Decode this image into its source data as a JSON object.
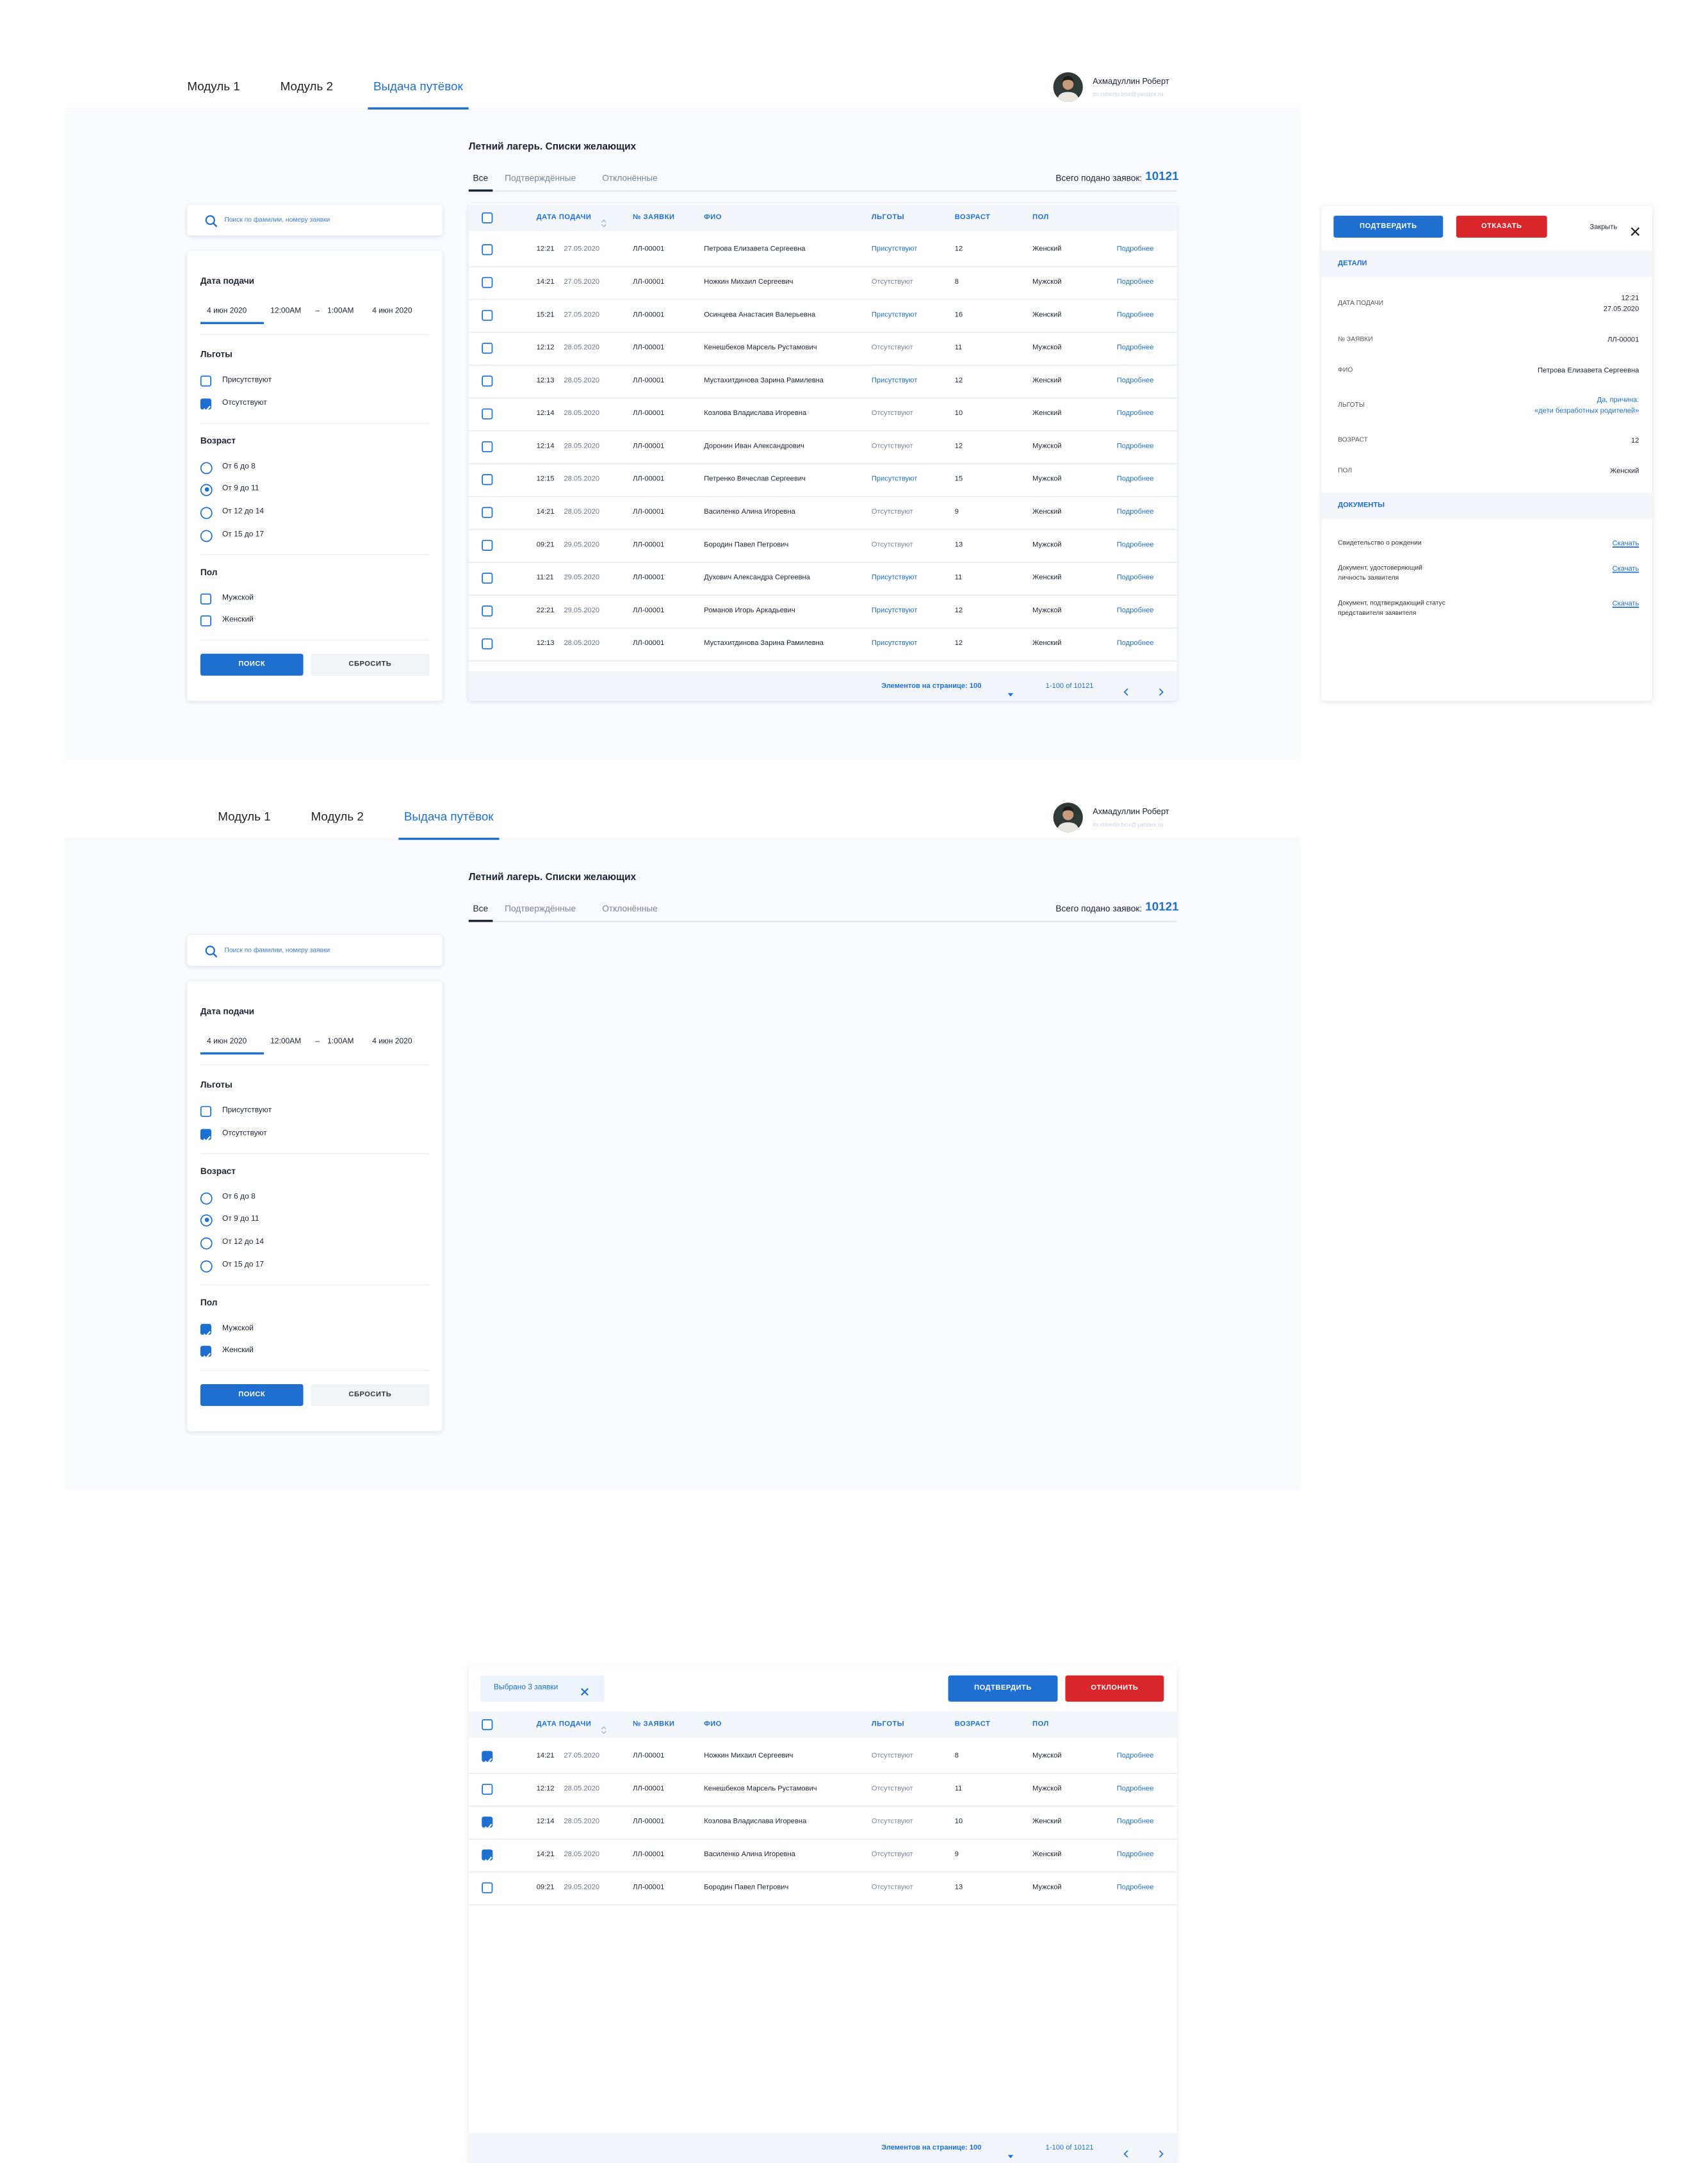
{
  "screens": [
    {
      "nav": {
        "tabs": [
          "Модуль 1",
          "Модуль 2",
          "Выдача путёвок"
        ],
        "active": 2
      },
      "user": {
        "name": "Ахмадуллин Роберт",
        "email": "its.roberto.box@yandex.ru"
      },
      "title": "Летний лагерь. Списки желающих",
      "tabs": [
        "Все",
        "Подтверждённые",
        "Отклонённые"
      ],
      "active_tab": 0,
      "total": {
        "label": "Всего подано заявок:",
        "value": 10121
      },
      "search_placeholder": "Поиск по фамилии, номеру заявки",
      "filters": {
        "date": {
          "title": "Дата подачи",
          "from_date": "4 июн 2020",
          "from_time": "12:00AM",
          "separator": "–",
          "to_time": "1:00AM",
          "to_date": "4 июн 2020"
        },
        "groups": [
          {
            "title": "Льготы",
            "kind": "checkbox",
            "options": [
              {
                "label": "Присутствуют",
                "checked": false
              },
              {
                "label": "Отсутствуют",
                "checked": true
              }
            ]
          },
          {
            "title": "Возраст",
            "kind": "radio",
            "options": [
              {
                "label": "От 6 до 8",
                "checked": false
              },
              {
                "label": "От 9 до 11",
                "checked": true
              },
              {
                "label": "От 12 до 14",
                "checked": false
              },
              {
                "label": "От 15 до 17",
                "checked": false
              }
            ]
          },
          {
            "title": "Пол",
            "kind": "checkbox",
            "options": [
              {
                "label": "Мужской",
                "checked": false
              },
              {
                "label": "Женский",
                "checked": false
              }
            ]
          }
        ],
        "buttons": {
          "search": "ПОИСК",
          "reset": "СБРОСИТЬ"
        }
      },
      "table": {
        "columns": [
          "ДАТА ПОДАЧИ",
          "№ ЗАЯВКИ",
          "ФИО",
          "ЛЬГОТЫ",
          "ВОЗРАСТ",
          "ПОЛ"
        ],
        "rows": [
          {
            "checked": false,
            "cells": [
              "12:21",
              "27.05.2020",
              "ЛЛ-00001",
              "Петрова Елизавета Сергеевна",
              "Присутствуют",
              12,
              "Женский",
              "Подробнее"
            ]
          },
          {
            "checked": false,
            "cells": [
              "14:21",
              "27.05.2020",
              "ЛЛ-00001",
              "Ножкин Михаил Сергеевич",
              "Отсутствуют",
              8,
              "Мужской",
              "Подробнее"
            ]
          },
          {
            "checked": false,
            "cells": [
              "15:21",
              "27.05.2020",
              "ЛЛ-00001",
              "Осинцева Анастасия Валерьевна",
              "Присутствуют",
              16,
              "Женский",
              "Подробнее"
            ]
          },
          {
            "checked": false,
            "cells": [
              "12:12",
              "28.05.2020",
              "ЛЛ-00001",
              "Кенешбеков Марсель Рустамович",
              "Отсутствуют",
              11,
              "Мужской",
              "Подробнее"
            ]
          },
          {
            "checked": false,
            "cells": [
              "12:13",
              "28.05.2020",
              "ЛЛ-00001",
              "Мустахитдинова Зарина Рамилевна",
              "Присутствуют",
              12,
              "Женский",
              "Подробнее"
            ]
          },
          {
            "checked": false,
            "cells": [
              "12:14",
              "28.05.2020",
              "ЛЛ-00001",
              "Козлова Владислава Игоревна",
              "Отсутствуют",
              10,
              "Женский",
              "Подробнее"
            ]
          },
          {
            "checked": false,
            "cells": [
              "12:14",
              "28.05.2020",
              "ЛЛ-00001",
              "Доронин Иван Александрович",
              "Отсутствуют",
              12,
              "Мужской",
              "Подробнее"
            ]
          },
          {
            "checked": false,
            "cells": [
              "12:15",
              "28.05.2020",
              "ЛЛ-00001",
              "Петренко Вячеслав Сергеевич",
              "Присутствуют",
              15,
              "Мужской",
              "Подробнее"
            ]
          },
          {
            "checked": false,
            "cells": [
              "14:21",
              "28.05.2020",
              "ЛЛ-00001",
              "Василенко Алина Игоревна",
              "Отсутствуют",
              9,
              "Женский",
              "Подробнее"
            ]
          },
          {
            "checked": false,
            "cells": [
              "09:21",
              "29.05.2020",
              "ЛЛ-00001",
              "Бородин Павел Петрович",
              "Отсутствуют",
              13,
              "Мужской",
              "Подробнее"
            ]
          },
          {
            "checked": false,
            "cells": [
              "11:21",
              "29.05.2020",
              "ЛЛ-00001",
              "Духович Александра Сергеевна",
              "Присутствуют",
              11,
              "Женский",
              "Подробнее"
            ]
          },
          {
            "checked": false,
            "cells": [
              "22:21",
              "29.05.2020",
              "ЛЛ-00001",
              "Романов Игорь Аркадьевич",
              "Присутствуют",
              12,
              "Мужской",
              "Подробнее"
            ]
          },
          {
            "checked": false,
            "cells": [
              "12:13",
              "28.05.2020",
              "ЛЛ-00001",
              "Мустахитдинова Зарина Рамилевна",
              "Присутствуют",
              12,
              "Женский",
              "Подробнее"
            ]
          }
        ],
        "footer": {
          "page_size": "Элементов на странице: 100",
          "range": "1-100 of 10121"
        }
      }
    },
    {
      "nav": {
        "tabs": [
          "Модуль 1",
          "Модуль 2",
          "Выдача путёвок"
        ],
        "active": 2
      },
      "user": {
        "name": "Ахмадуллин Роберт",
        "email": "its.roberto.box@yandex.ru"
      },
      "title": "Летний лагерь. Списки желающих",
      "tabs": [
        "Все",
        "Подтверждённые",
        "Отклонённые"
      ],
      "active_tab": 0,
      "total": {
        "label": "Всего подано заявок:",
        "value": 10121
      },
      "search_placeholder": "Поиск по фамилии, номеру заявки",
      "filters": {
        "date": {
          "title": "Дата подачи",
          "from_date": "4 июн 2020",
          "from_time": "12:00AM",
          "separator": "–",
          "to_time": "1:00AM",
          "to_date": "4 июн 2020"
        },
        "groups": [
          {
            "title": "Льготы",
            "kind": "checkbox",
            "options": [
              {
                "label": "Присутствуют",
                "checked": false
              },
              {
                "label": "Отсутствуют",
                "checked": true
              }
            ]
          },
          {
            "title": "Возраст",
            "kind": "radio",
            "options": [
              {
                "label": "От 6 до 8",
                "checked": false
              },
              {
                "label": "От 9 до 11",
                "checked": true
              },
              {
                "label": "От 12 до 14",
                "checked": false
              },
              {
                "label": "От 15 до 17",
                "checked": false
              }
            ]
          },
          {
            "title": "Пол",
            "kind": "checkbox",
            "options": [
              {
                "label": "Мужской",
                "checked": true
              },
              {
                "label": "Женский",
                "checked": true
              }
            ]
          }
        ],
        "buttons": {
          "search": "ПОИСК",
          "reset": "СБРОСИТЬ"
        }
      },
      "table": {
        "selection": "Выбрано 3 заявки",
        "actions": [
          "ПОДТВЕРДИТЬ",
          "ОТКЛОНИТЬ"
        ],
        "columns": [
          "ДАТА ПОДАЧИ",
          "№ ЗАЯВКИ",
          "ФИО",
          "ЛЬГОТЫ",
          "ВОЗРАСТ",
          "ПОЛ"
        ],
        "rows": [
          {
            "checked": true,
            "cells": [
              "14:21",
              "27.05.2020",
              "ЛЛ-00001",
              "Ножкин Михаил Сергеевич",
              "Отсутствуют",
              8,
              "Мужской",
              "Подробнее"
            ]
          },
          {
            "checked": false,
            "cells": [
              "12:12",
              "28.05.2020",
              "ЛЛ-00001",
              "Кенешбеков Марсель Рустамович",
              "Отсутствуют",
              11,
              "Мужской",
              "Подробнее"
            ]
          },
          {
            "checked": true,
            "cells": [
              "12:14",
              "28.05.2020",
              "ЛЛ-00001",
              "Козлова Владислава Игоревна",
              "Отсутствуют",
              10,
              "Женский",
              "Подробнее"
            ]
          },
          {
            "checked": true,
            "cells": [
              "14:21",
              "28.05.2020",
              "ЛЛ-00001",
              "Василенко Алина Игоревна",
              "Отсутствуют",
              9,
              "Женский",
              "Подробнее"
            ]
          },
          {
            "checked": false,
            "cells": [
              "09:21",
              "29.05.2020",
              "ЛЛ-00001",
              "Бородин Павел Петрович",
              "Отсутствуют",
              13,
              "Мужской",
              "Подробнее"
            ]
          }
        ],
        "footer": {
          "page_size": "Элементов на странице: 100",
          "range": "1-100 of 10121"
        }
      }
    }
  ],
  "detail_panel": {
    "actions": [
      "ПОДТВЕРДИТЬ",
      "ОТКАЗАТЬ"
    ],
    "close": "Закрыть",
    "details_title": "ДЕТАЛИ",
    "details": [
      {
        "label": "ДАТА ПОДАЧИ",
        "value": [
          "12:21",
          "27.05.2020"
        ]
      },
      {
        "label": "№ ЗАЯВКИ",
        "value": [
          "ЛЛ-00001"
        ]
      },
      {
        "label": "ФИО",
        "value": [
          "Петрова Елизавета Сергеевна"
        ]
      },
      {
        "label": "ЛЬГОТЫ",
        "value": [
          "Да, причина:",
          "«дети безработных родителей»"
        ],
        "link": true
      },
      {
        "label": "ВОЗРАСТ",
        "value": [
          "12"
        ]
      },
      {
        "label": "ПОЛ",
        "value": [
          "Женский"
        ]
      }
    ],
    "documents_title": "ДОКУМЕНТЫ",
    "documents": [
      {
        "name": [
          "Свидетельство о рождении"
        ],
        "link": "Скачать"
      },
      {
        "name": [
          "Документ, удостоверяющий",
          "личность заявителя"
        ],
        "link": "Скачать"
      },
      {
        "name": [
          "Документ, подтверждающий статус",
          "представителя заявителя"
        ],
        "link": "Скачать"
      }
    ]
  }
}
